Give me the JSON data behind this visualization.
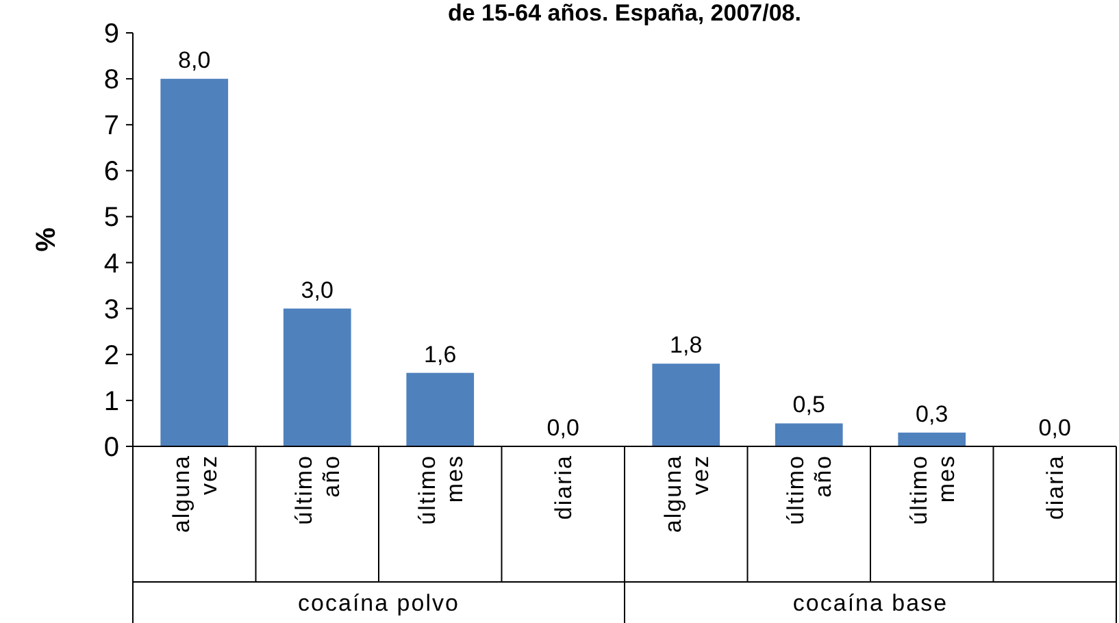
{
  "chart_data": {
    "type": "bar",
    "title": "de 15-64 años. España, 2007/08.",
    "ylabel": "%",
    "categories": [
      "alguna vez",
      "último año",
      "último mes",
      "diaria",
      "alguna vez",
      "último año",
      "último mes",
      "diaria"
    ],
    "values": [
      8.0,
      3.0,
      1.6,
      0.0,
      1.8,
      0.5,
      0.3,
      0.0
    ],
    "value_labels": [
      "8,0",
      "3,0",
      "1,6",
      "0,0",
      "1,8",
      "0,5",
      "0,3",
      "0,0"
    ],
    "color": "#4f81bd",
    "ylim": [
      0,
      9
    ],
    "yticks": [
      0,
      1,
      2,
      3,
      4,
      5,
      6,
      7,
      8,
      9
    ],
    "grid": false,
    "annotations": [
      "cocaína polvo",
      "cocaína base"
    ]
  }
}
